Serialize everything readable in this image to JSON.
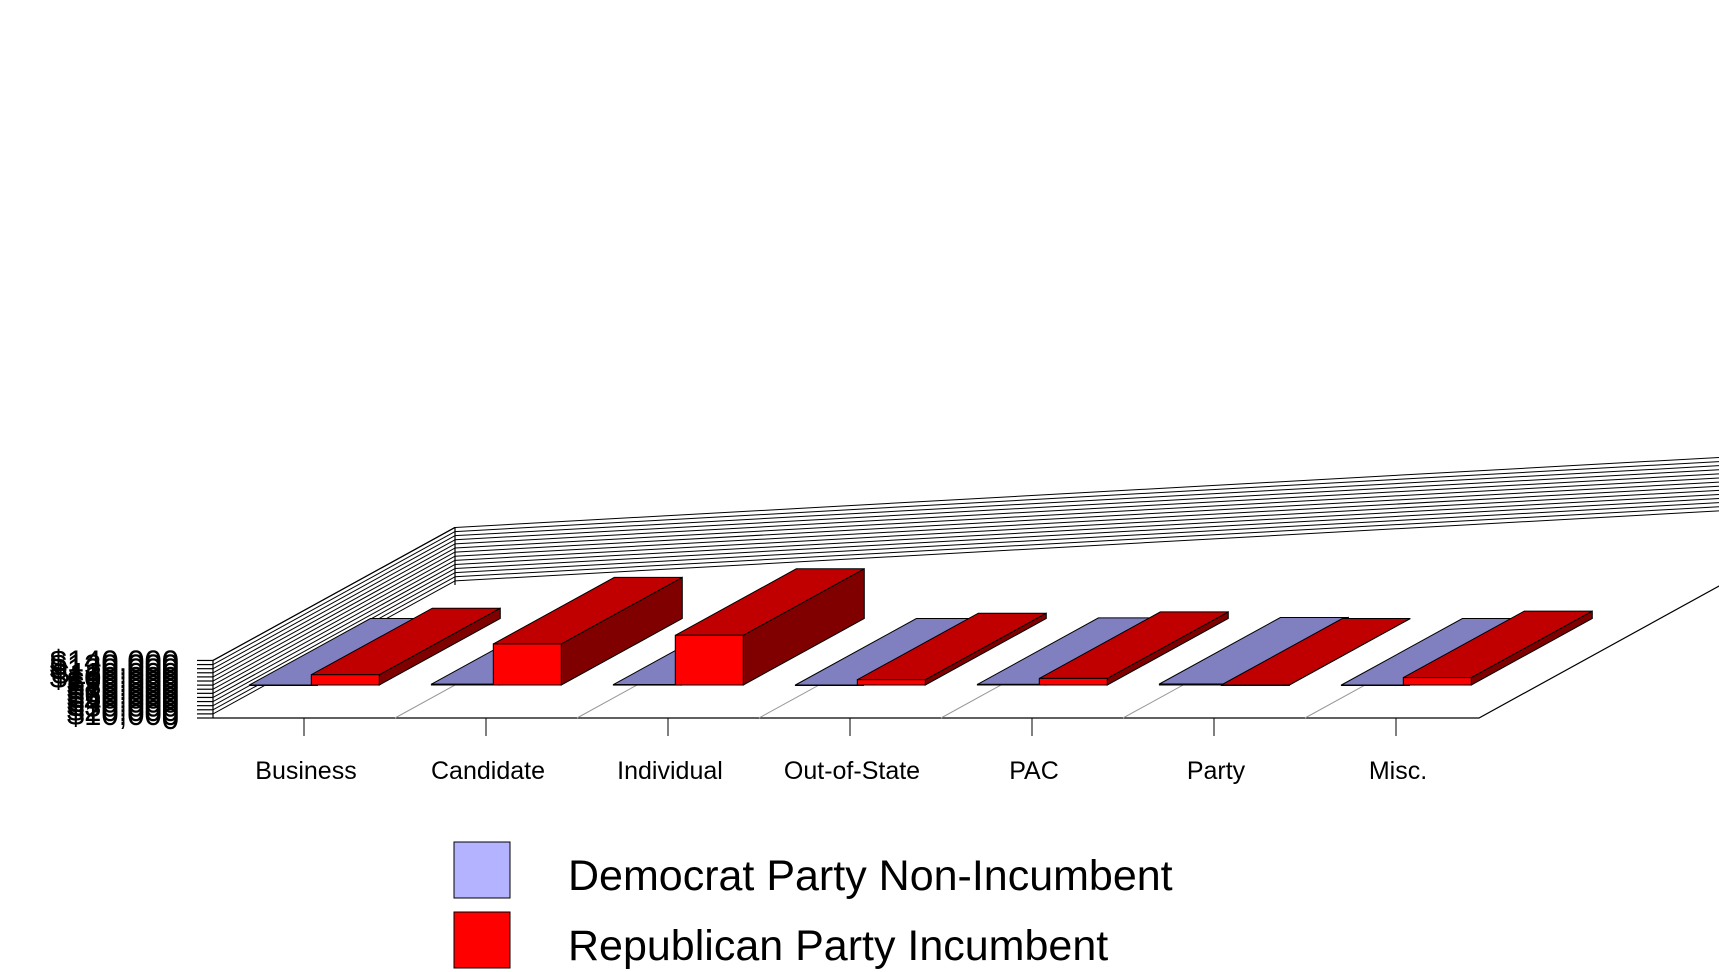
{
  "chart_data": {
    "type": "bar",
    "title": "",
    "xlabel": "",
    "ylabel": "",
    "categories": [
      "Business",
      "Candidate",
      "Individual",
      "Out-of-State",
      "PAC",
      "Party",
      "Misc."
    ],
    "series": [
      {
        "name": "Democrat Party Non-Incumbent",
        "color": "#b3b3ff",
        "values": [
          0,
          2000,
          1000,
          0,
          1500,
          2500,
          0
        ]
      },
      {
        "name": "Republican  Party Incumbent",
        "color": "#ff0000",
        "values": [
          25000,
          100000,
          121000,
          13000,
          16000,
          0,
          18000
        ]
      }
    ],
    "ylim": [
      0,
      140000
    ],
    "yticks": [
      "0",
      "$10,000",
      "$20,000",
      "$30,000",
      "$40,000",
      "$50,000",
      "$60,000",
      "$70,000",
      "$80,000",
      "$90,000",
      "$100,000",
      "$110,000",
      "$120,000",
      "$130,000",
      "$140,000"
    ],
    "ytick_values": [
      0,
      10000,
      20000,
      30000,
      40000,
      50000,
      60000,
      70000,
      80000,
      90000,
      100000,
      110000,
      120000,
      130000,
      140000
    ],
    "grid": true,
    "legend_position": "bottom",
    "style": "3d"
  }
}
